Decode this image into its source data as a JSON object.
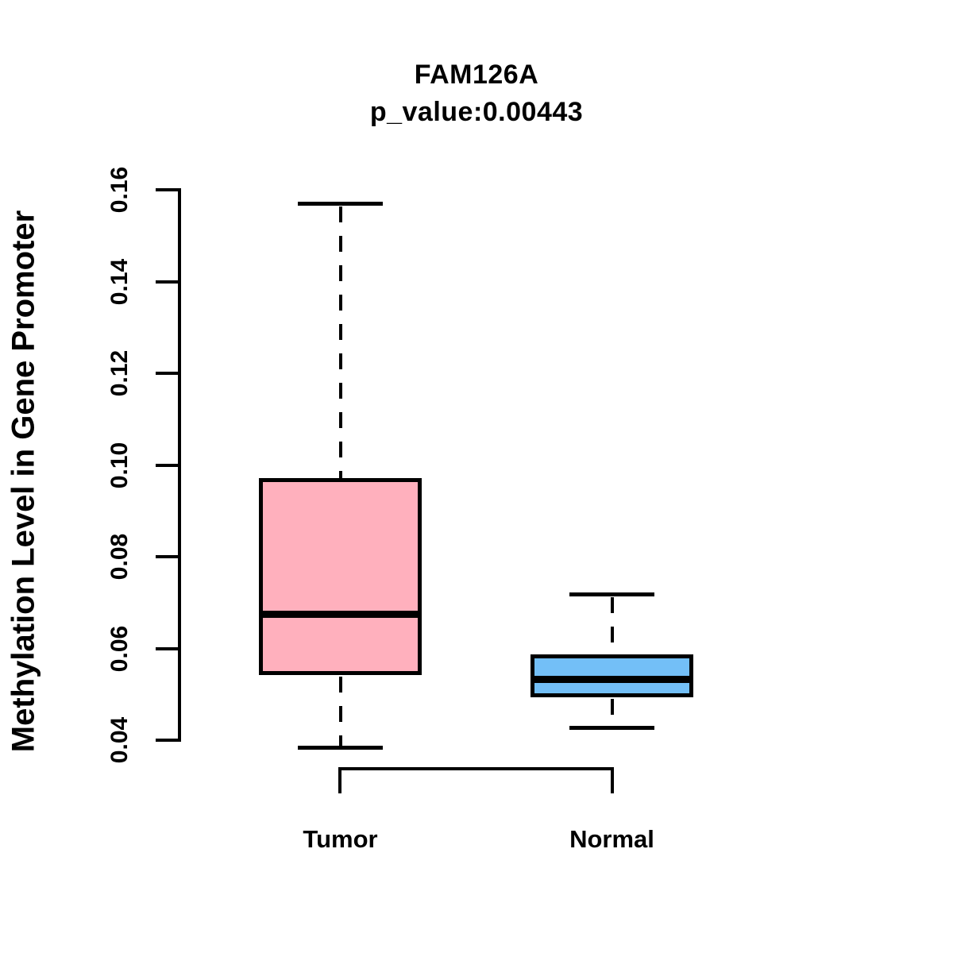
{
  "chart_data": {
    "type": "boxplot",
    "title": "FAM126A",
    "subtitle": "p_value:0.00443",
    "ylabel": "Methylation Level in Gene Promoter",
    "xlabel": "",
    "categories": [
      "Tumor",
      "Normal"
    ],
    "ylim": [
      0.04,
      0.16
    ],
    "yticks": [
      0.04,
      0.06,
      0.08,
      0.1,
      0.12,
      0.14,
      0.16
    ],
    "ytick_labels": [
      "0.04",
      "0.06",
      "0.08",
      "0.10",
      "0.12",
      "0.14",
      "0.16"
    ],
    "grid": false,
    "legend": "none",
    "line_color": "#000000",
    "series": [
      {
        "name": "Tumor",
        "box_color": "#FFB0BD",
        "stats": {
          "whisker_low": 0.0383,
          "q1": 0.0542,
          "median": 0.0675,
          "q3": 0.0971,
          "whisker_high": 0.1569
        }
      },
      {
        "name": "Normal",
        "box_color": "#73BFF7",
        "stats": {
          "whisker_low": 0.0426,
          "q1": 0.0493,
          "median": 0.0532,
          "q3": 0.0587,
          "whisker_high": 0.0717
        }
      }
    ]
  }
}
